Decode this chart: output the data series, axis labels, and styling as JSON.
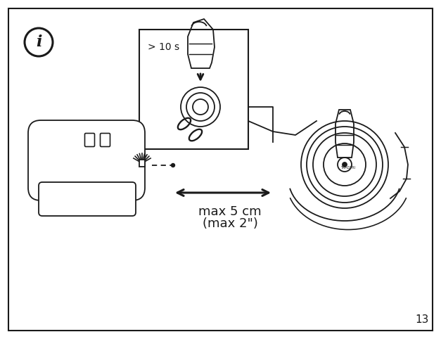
{
  "bg_color": "#ffffff",
  "line_color": "#1a1a1a",
  "page_number": "13",
  "info_symbol": "i",
  "time_label": "> 10 s",
  "distance_label_line1": "max 5 cm",
  "distance_label_line2": "(max 2\")",
  "fig_width": 6.27,
  "fig_height": 4.82,
  "dpi": 100
}
